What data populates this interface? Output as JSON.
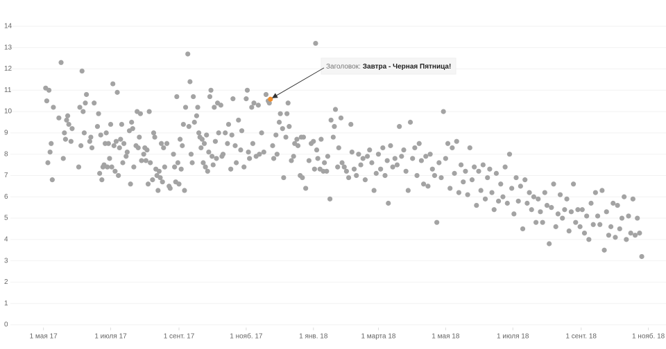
{
  "chart_data": {
    "type": "scatter",
    "color": "#a3a3a3",
    "grid": true,
    "xlim": [
      "2017-04-01",
      "2018-11-17"
    ],
    "ylim": [
      0,
      15
    ],
    "yticks": [
      0,
      1,
      2,
      3,
      4,
      5,
      6,
      7,
      8,
      9,
      10,
      11,
      12,
      13,
      14
    ],
    "xticks": [
      {
        "value": "2017-05-01",
        "label": "1 мая 17"
      },
      {
        "value": "2017-07-01",
        "label": "1 июля 17"
      },
      {
        "value": "2017-09-01",
        "label": "1 сент. 17"
      },
      {
        "value": "2017-11-01",
        "label": "1 нояб. 17"
      },
      {
        "value": "2018-01-01",
        "label": "1 янв. 18"
      },
      {
        "value": "2018-03-01",
        "label": "1 марта 18"
      },
      {
        "value": "2018-05-01",
        "label": "1 мая 18"
      },
      {
        "value": "2018-07-01",
        "label": "1 июля 18"
      },
      {
        "value": "2018-09-01",
        "label": "1 сент. 18"
      },
      {
        "value": "2018-11-01",
        "label": "1 нояб. 18"
      }
    ],
    "annotation": {
      "label": "Заголовок:",
      "text": "Завтра - Черная Пятница!",
      "x": "2017-11-23",
      "color": "#f28e2b"
    },
    "x": [
      "2017-05-03",
      "2017-05-04",
      "2017-05-05",
      "2017-05-06",
      "2017-05-07",
      "2017-05-08",
      "2017-05-09",
      "2017-05-10",
      "2017-05-15",
      "2017-05-17",
      "2017-05-19",
      "2017-05-20",
      "2017-05-21",
      "2017-05-22",
      "2017-05-23",
      "2017-05-24",
      "2017-05-26",
      "2017-05-27",
      "2017-06-02",
      "2017-06-03",
      "2017-06-04",
      "2017-06-05",
      "2017-06-06",
      "2017-06-07",
      "2017-06-08",
      "2017-06-09",
      "2017-06-12",
      "2017-06-13",
      "2017-06-14",
      "2017-06-16",
      "2017-06-19",
      "2017-06-20",
      "2017-06-21",
      "2017-06-22",
      "2017-06-23",
      "2017-06-24",
      "2017-06-25",
      "2017-06-26",
      "2017-06-27",
      "2017-06-28",
      "2017-06-29",
      "2017-06-30",
      "2017-07-01",
      "2017-07-02",
      "2017-07-03",
      "2017-07-04",
      "2017-07-05",
      "2017-07-06",
      "2017-07-07",
      "2017-07-08",
      "2017-07-09",
      "2017-07-10",
      "2017-07-11",
      "2017-07-12",
      "2017-07-13",
      "2017-07-15",
      "2017-07-16",
      "2017-07-18",
      "2017-07-19",
      "2017-07-20",
      "2017-07-21",
      "2017-07-22",
      "2017-07-24",
      "2017-07-25",
      "2017-07-26",
      "2017-07-27",
      "2017-07-28",
      "2017-07-29",
      "2017-07-31",
      "2017-08-01",
      "2017-08-02",
      "2017-08-03",
      "2017-08-04",
      "2017-08-05",
      "2017-08-06",
      "2017-08-08",
      "2017-08-09",
      "2017-08-10",
      "2017-08-11",
      "2017-08-12",
      "2017-08-13",
      "2017-08-14",
      "2017-08-15",
      "2017-08-16",
      "2017-08-17",
      "2017-08-18",
      "2017-08-19",
      "2017-08-21",
      "2017-08-23",
      "2017-08-24",
      "2017-08-27",
      "2017-08-28",
      "2017-08-29",
      "2017-08-30",
      "2017-08-31",
      "2017-09-01",
      "2017-09-02",
      "2017-09-03",
      "2017-09-04",
      "2017-09-05",
      "2017-09-06",
      "2017-09-07",
      "2017-09-09",
      "2017-09-10",
      "2017-09-11",
      "2017-09-12",
      "2017-09-13",
      "2017-09-14",
      "2017-09-15",
      "2017-09-17",
      "2017-09-18",
      "2017-09-19",
      "2017-09-20",
      "2017-09-21",
      "2017-09-22",
      "2017-09-23",
      "2017-09-24",
      "2017-09-25",
      "2017-09-26",
      "2017-09-27",
      "2017-09-28",
      "2017-09-29",
      "2017-09-30",
      "2017-10-01",
      "2017-10-02",
      "2017-10-03",
      "2017-10-04",
      "2017-10-05",
      "2017-10-06",
      "2017-10-07",
      "2017-10-09",
      "2017-10-10",
      "2017-10-11",
      "2017-10-13",
      "2017-10-15",
      "2017-10-16",
      "2017-10-18",
      "2017-10-19",
      "2017-10-20",
      "2017-10-22",
      "2017-10-23",
      "2017-10-25",
      "2017-10-27",
      "2017-10-28",
      "2017-10-30",
      "2017-11-01",
      "2017-11-02",
      "2017-11-03",
      "2017-11-04",
      "2017-11-06",
      "2017-11-07",
      "2017-11-08",
      "2017-11-10",
      "2017-11-12",
      "2017-11-13",
      "2017-11-15",
      "2017-11-17",
      "2017-11-19",
      "2017-11-21",
      "2017-11-22",
      "2017-11-23",
      "2017-11-25",
      "2017-11-26",
      "2017-11-28",
      "2017-11-29",
      "2017-12-01",
      "2017-12-02",
      "2017-12-04",
      "2017-12-05",
      "2017-12-07",
      "2017-12-08",
      "2017-12-09",
      "2017-12-10",
      "2017-12-12",
      "2017-12-14",
      "2017-12-15",
      "2017-12-17",
      "2017-12-18",
      "2017-12-20",
      "2017-12-21",
      "2017-12-22",
      "2017-12-23",
      "2017-12-25",
      "2017-12-28",
      "2017-12-30",
      "2018-01-01",
      "2018-01-02",
      "2018-01-03",
      "2018-01-04",
      "2018-01-05",
      "2018-01-07",
      "2018-01-08",
      "2018-01-10",
      "2018-01-11",
      "2018-01-13",
      "2018-01-14",
      "2018-01-16",
      "2018-01-17",
      "2018-01-19",
      "2018-01-20",
      "2018-01-21",
      "2018-01-23",
      "2018-01-24",
      "2018-01-26",
      "2018-01-27",
      "2018-01-29",
      "2018-01-31",
      "2018-02-02",
      "2018-02-04",
      "2018-02-05",
      "2018-02-07",
      "2018-02-09",
      "2018-02-11",
      "2018-02-13",
      "2018-02-15",
      "2018-02-17",
      "2018-02-19",
      "2018-02-21",
      "2018-02-23",
      "2018-02-25",
      "2018-02-27",
      "2018-03-01",
      "2018-03-03",
      "2018-03-05",
      "2018-03-07",
      "2018-03-09",
      "2018-03-10",
      "2018-03-12",
      "2018-03-14",
      "2018-03-16",
      "2018-03-18",
      "2018-03-20",
      "2018-03-22",
      "2018-03-24",
      "2018-03-26",
      "2018-03-28",
      "2018-03-30",
      "2018-04-01",
      "2018-04-03",
      "2018-04-05",
      "2018-04-07",
      "2018-04-09",
      "2018-04-11",
      "2018-04-13",
      "2018-04-15",
      "2018-04-17",
      "2018-04-19",
      "2018-04-21",
      "2018-04-23",
      "2018-04-25",
      "2018-04-27",
      "2018-04-29",
      "2018-05-01",
      "2018-05-03",
      "2018-05-05",
      "2018-05-07",
      "2018-05-09",
      "2018-05-11",
      "2018-05-13",
      "2018-05-15",
      "2018-05-17",
      "2018-05-19",
      "2018-05-21",
      "2018-05-23",
      "2018-05-25",
      "2018-05-27",
      "2018-05-29",
      "2018-05-31",
      "2018-06-02",
      "2018-06-04",
      "2018-06-06",
      "2018-06-08",
      "2018-06-10",
      "2018-06-12",
      "2018-06-14",
      "2018-06-16",
      "2018-06-18",
      "2018-06-20",
      "2018-06-22",
      "2018-06-24",
      "2018-06-26",
      "2018-06-28",
      "2018-06-30",
      "2018-07-02",
      "2018-07-04",
      "2018-07-06",
      "2018-07-08",
      "2018-07-10",
      "2018-07-12",
      "2018-07-14",
      "2018-07-16",
      "2018-07-18",
      "2018-07-20",
      "2018-07-22",
      "2018-07-24",
      "2018-07-26",
      "2018-07-28",
      "2018-07-30",
      "2018-08-01",
      "2018-08-03",
      "2018-08-05",
      "2018-08-07",
      "2018-08-09",
      "2018-08-11",
      "2018-08-13",
      "2018-08-15",
      "2018-08-17",
      "2018-08-19",
      "2018-08-21",
      "2018-08-23",
      "2018-08-25",
      "2018-08-27",
      "2018-08-29",
      "2018-08-31",
      "2018-09-02",
      "2018-09-04",
      "2018-09-06",
      "2018-09-08",
      "2018-09-10",
      "2018-09-12",
      "2018-09-14",
      "2018-09-16",
      "2018-09-18",
      "2018-09-20",
      "2018-09-22",
      "2018-09-24",
      "2018-09-26",
      "2018-09-28",
      "2018-09-30",
      "2018-10-02",
      "2018-10-04",
      "2018-10-06",
      "2018-10-08",
      "2018-10-10",
      "2018-10-12",
      "2018-10-14",
      "2018-10-16",
      "2018-10-18",
      "2018-10-20",
      "2018-10-22",
      "2018-10-24",
      "2018-10-26"
    ],
    "values": [
      11.1,
      10.5,
      7.6,
      11.0,
      8.1,
      8.5,
      6.8,
      10.2,
      9.7,
      12.3,
      7.8,
      9.0,
      8.7,
      9.6,
      9.8,
      9.4,
      8.6,
      9.2,
      7.4,
      10.2,
      8.4,
      11.9,
      10.0,
      9.0,
      10.4,
      10.8,
      8.6,
      8.8,
      8.3,
      10.4,
      9.3,
      9.9,
      7.1,
      8.9,
      6.8,
      7.4,
      7.5,
      8.5,
      9.0,
      7.4,
      8.5,
      7.8,
      9.4,
      7.4,
      11.3,
      8.4,
      7.2,
      8.6,
      10.9,
      7.0,
      8.3,
      8.7,
      9.4,
      7.6,
      8.5,
      7.9,
      8.1,
      9.1,
      6.6,
      9.5,
      9.2,
      7.4,
      8.4,
      10.0,
      8.3,
      8.8,
      9.9,
      7.7,
      8.0,
      8.3,
      7.7,
      8.2,
      6.6,
      10.0,
      7.6,
      6.8,
      9.0,
      8.8,
      7.3,
      7.0,
      6.3,
      7.2,
      6.9,
      8.5,
      6.7,
      8.3,
      7.4,
      8.5,
      6.5,
      6.4,
      8.0,
      7.4,
      6.7,
      10.7,
      7.6,
      6.6,
      8.7,
      7.3,
      8.4,
      9.4,
      6.3,
      10.2,
      12.7,
      9.3,
      11.4,
      8.0,
      7.6,
      10.7,
      9.5,
      9.8,
      10.2,
      9.0,
      8.8,
      8.3,
      8.7,
      7.6,
      8.5,
      7.4,
      8.9,
      7.2,
      8.1,
      10.7,
      11.0,
      7.9,
      7.5,
      10.2,
      8.6,
      7.8,
      10.4,
      9.0,
      10.3,
      7.9,
      8.0,
      9.0,
      8.5,
      9.4,
      7.3,
      8.9,
      10.6,
      8.4,
      7.6,
      9.6,
      8.2,
      9.1,
      7.4,
      10.6,
      11.0,
      8.1,
      7.8,
      10.2,
      8.5,
      10.4,
      7.9,
      10.3,
      8.0,
      9.0,
      8.1,
      10.8,
      10.5,
      10.4,
      10.58,
      8.4,
      7.8,
      8.9,
      8.0,
      9.5,
      9.9,
      9.2,
      6.9,
      8.8,
      9.9,
      10.4,
      9.3,
      7.7,
      7.9,
      8.5,
      8.7,
      8.4,
      7.0,
      8.8,
      6.9,
      8.8,
      6.4,
      7.7,
      8.5,
      8.6,
      7.3,
      13.2,
      8.2,
      7.8,
      7.3,
      8.7,
      7.2,
      7.6,
      7.2,
      7.9,
      5.9,
      9.6,
      8.8,
      9.3,
      10.1,
      7.4,
      8.3,
      9.7,
      7.6,
      7.4,
      7.2,
      6.9,
      9.4,
      8.1,
      7.3,
      7.0,
      8.0,
      7.5,
      7.8,
      6.8,
      7.9,
      8.2,
      7.6,
      6.3,
      7.1,
      8.0,
      7.3,
      8.3,
      7.0,
      7.7,
      5.7,
      8.4,
      7.4,
      7.8,
      7.5,
      9.3,
      7.9,
      8.2,
      7.2,
      6.3,
      9.5,
      7.8,
      8.3,
      7.0,
      8.5,
      7.7,
      6.6,
      7.9,
      6.5,
      8.0,
      7.3,
      7.0,
      4.8,
      7.6,
      6.9,
      10.0,
      7.8,
      8.5,
      6.4,
      8.3,
      7.1,
      8.6,
      6.2,
      7.5,
      6.7,
      7.2,
      6.1,
      8.3,
      6.8,
      7.4,
      5.6,
      7.2,
      6.3,
      7.5,
      5.9,
      6.9,
      7.3,
      6.2,
      5.4,
      7.1,
      5.8,
      6.6,
      6.0,
      7.4,
      5.7,
      8.0,
      6.4,
      5.2,
      6.9,
      5.8,
      6.5,
      4.5,
      6.8,
      5.7,
      6.2,
      5.4,
      6.0,
      4.8,
      5.9,
      5.3,
      4.8,
      6.2,
      5.6,
      3.8,
      5.5,
      6.6,
      4.6,
      5.2,
      6.1,
      5.0,
      5.4,
      5.9,
      4.4,
      5.3,
      6.6,
      4.8,
      5.4,
      4.6,
      5.4,
      4.3,
      5.1,
      4.0,
      5.7,
      4.7,
      6.2,
      5.1,
      4.7,
      6.3,
      3.5,
      5.3,
      4.2,
      4.6,
      5.7,
      4.1,
      5.6,
      4.5,
      5.0,
      6.0,
      4.0,
      5.1,
      4.3,
      5.9,
      4.2,
      5.0,
      4.3,
      3.2
    ]
  }
}
